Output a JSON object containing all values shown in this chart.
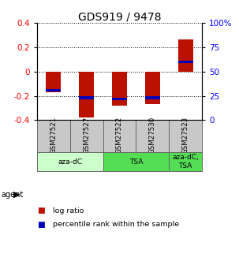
{
  "title": "GDS919 / 9478",
  "samples": [
    "GSM27521",
    "GSM27527",
    "GSM27522",
    "GSM27530",
    "GSM27523"
  ],
  "log_ratios": [
    -0.17,
    -0.38,
    -0.28,
    -0.27,
    0.265
  ],
  "percentile_ranks": [
    31,
    23,
    22,
    23,
    60
  ],
  "agents": [
    {
      "label": "aza-dC",
      "span": [
        0,
        2
      ],
      "color": "#ccffcc"
    },
    {
      "label": "TSA",
      "span": [
        2,
        4
      ],
      "color": "#55dd55"
    },
    {
      "label": "aza-dC,\nTSA",
      "span": [
        4,
        5
      ],
      "color": "#55dd55"
    }
  ],
  "ylim": [
    -0.4,
    0.4
  ],
  "yticks": [
    -0.4,
    -0.2,
    0.0,
    0.2,
    0.4
  ],
  "ytick_labels_left": [
    "-0.4",
    "-0.2",
    "0",
    "0.2",
    "0.4"
  ],
  "ytick_labels_right": [
    "0",
    "25",
    "50",
    "75",
    "100%"
  ],
  "bar_color": "#bb1100",
  "pct_color": "#0000bb",
  "grid_color": "#000000",
  "title_fontsize": 10,
  "tick_fontsize": 7.5,
  "label_fontsize": 7
}
